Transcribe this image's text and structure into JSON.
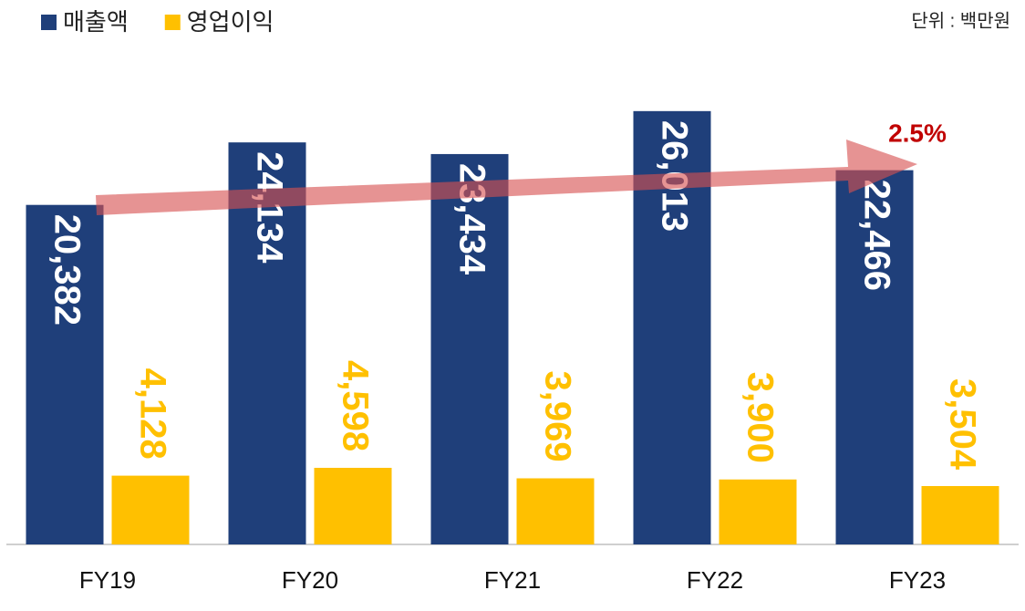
{
  "chart_data": {
    "type": "bar",
    "categories": [
      "FY19",
      "FY20",
      "FY21",
      "FY22",
      "FY23"
    ],
    "series": [
      {
        "name": "매출액",
        "color": "#1f3f7a",
        "values": [
          20382,
          24134,
          23434,
          26013,
          22466
        ],
        "value_labels": [
          "20,382",
          "24,134",
          "23,434",
          "26,013",
          "22,466"
        ]
      },
      {
        "name": "영업이익",
        "color": "#ffc000",
        "values": [
          4128,
          4598,
          3969,
          3900,
          3504
        ],
        "value_labels": [
          "4,128",
          "4,598",
          "3,969",
          "3,900",
          "3,504"
        ]
      }
    ],
    "ylim": [
      0,
      30000
    ],
    "unit_label": "단위 : 백만원",
    "annotation": "2.5%"
  }
}
